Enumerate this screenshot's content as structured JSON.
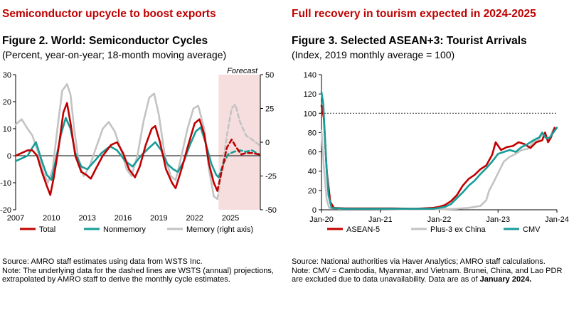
{
  "left": {
    "headline": "Semiconductor upcycle to boost exports",
    "title": "Figure 2. World: Semiconductor Cycles",
    "subtitle": "(Percent, year-on-year; 18-month moving average)",
    "source": "Source: AMRO staff estimates using data from WSTS Inc.",
    "note": "Note: The underlying data for the dashed lines are WSTS (annual) projections, extrapolated by AMRO staff to derive the monthly cycle estimates."
  },
  "right": {
    "headline": "Full recovery in tourism expected in 2024-2025",
    "title": "Figure 3. Selected ASEAN+3: Tourist Arrivals",
    "subtitle": "(Index, 2019 monthly average = 100)",
    "source": "Source: National authorities via Haver Analytics; AMRO staff calculations.",
    "note_main": "Note: CMV = Cambodia, Myanmar, and Vietnam. Brunei, China, and Lao PDR are excluded due to data unavailability. Data are as of",
    "note_bold": "January 2024."
  },
  "colors": {
    "headline": "#c00000",
    "total": "#c00000",
    "nonmemory": "#179c98",
    "memory": "#c3c3c3",
    "asean5": "#c00000",
    "plus3": "#c3c3c3",
    "cmv": "#179c98",
    "forecast_shade": "#f6dede"
  },
  "chart_data": [
    {
      "type": "line",
      "x_unit": "year",
      "xlim": [
        2007,
        2027.5
      ],
      "x_tick_labels": [
        "2007",
        "2010",
        "2013",
        "2016",
        "2019",
        "2022",
        "2025"
      ],
      "y_left": {
        "ylim": [
          -20,
          30
        ],
        "tick_labels": [
          "-20",
          "-10",
          "0",
          "10",
          "20",
          "30"
        ]
      },
      "y_right": {
        "label": "Memory (right axis)",
        "ylim": [
          -50,
          50
        ],
        "tick_labels": [
          "-50",
          "-25",
          "0",
          "25",
          "50"
        ]
      },
      "forecast": {
        "label": "Forecast",
        "start": 2024.0,
        "end": 2027.5
      },
      "series": [
        {
          "name": "Total",
          "axis": "left",
          "points": [
            [
              2007.0,
              0
            ],
            [
              2007.5,
              1
            ],
            [
              2008.0,
              2
            ],
            [
              2008.4,
              2
            ],
            [
              2008.8,
              0
            ],
            [
              2009.2,
              -6
            ],
            [
              2009.6,
              -11
            ],
            [
              2009.9,
              -14.5
            ],
            [
              2010.2,
              -8
            ],
            [
              2010.6,
              3
            ],
            [
              2011.0,
              16
            ],
            [
              2011.3,
              19.5
            ],
            [
              2011.6,
              12
            ],
            [
              2012.0,
              0
            ],
            [
              2012.5,
              -6
            ],
            [
              2012.9,
              -7
            ],
            [
              2013.3,
              -8.5
            ],
            [
              2013.7,
              -5
            ],
            [
              2014.3,
              0
            ],
            [
              2015.0,
              4
            ],
            [
              2015.5,
              5
            ],
            [
              2016.0,
              1
            ],
            [
              2016.5,
              -5
            ],
            [
              2017.0,
              -8
            ],
            [
              2017.4,
              -4
            ],
            [
              2017.9,
              4
            ],
            [
              2018.4,
              10
            ],
            [
              2018.7,
              11
            ],
            [
              2019.1,
              5
            ],
            [
              2019.6,
              -5
            ],
            [
              2020.1,
              -10
            ],
            [
              2020.4,
              -12
            ],
            [
              2020.9,
              -5
            ],
            [
              2021.4,
              3
            ],
            [
              2022.0,
              12
            ],
            [
              2022.4,
              13.5
            ],
            [
              2022.8,
              8
            ],
            [
              2023.2,
              -3
            ],
            [
              2023.6,
              -10
            ],
            [
              2023.9,
              -13
            ]
          ]
        },
        {
          "name": "Total",
          "axis": "left",
          "dashed": true,
          "points": [
            [
              2023.9,
              -13
            ],
            [
              2024.3,
              -5
            ],
            [
              2024.7,
              3
            ],
            [
              2025.1,
              6
            ],
            [
              2025.5,
              3
            ],
            [
              2025.9,
              0.5
            ],
            [
              2026.3,
              1
            ],
            [
              2026.8,
              1
            ],
            [
              2027.4,
              0.5
            ]
          ]
        },
        {
          "name": "Nonmemory",
          "axis": "left",
          "points": [
            [
              2007.0,
              -2
            ],
            [
              2007.5,
              -1
            ],
            [
              2008.0,
              0
            ],
            [
              2008.4,
              3
            ],
            [
              2008.7,
              5
            ],
            [
              2009.2,
              -2
            ],
            [
              2009.6,
              -7
            ],
            [
              2010.0,
              -9
            ],
            [
              2010.3,
              -3
            ],
            [
              2010.8,
              8
            ],
            [
              2011.2,
              14
            ],
            [
              2011.6,
              10
            ],
            [
              2012.0,
              1
            ],
            [
              2012.5,
              -4
            ],
            [
              2013.0,
              -5
            ],
            [
              2013.6,
              -2
            ],
            [
              2014.2,
              1
            ],
            [
              2014.9,
              3.5
            ],
            [
              2015.5,
              2
            ],
            [
              2016.2,
              -2
            ],
            [
              2016.8,
              -4
            ],
            [
              2017.5,
              0
            ],
            [
              2018.2,
              3
            ],
            [
              2018.7,
              5
            ],
            [
              2019.2,
              2
            ],
            [
              2019.7,
              -3
            ],
            [
              2020.2,
              -5
            ],
            [
              2020.6,
              -6
            ],
            [
              2021.1,
              -2
            ],
            [
              2021.6,
              4
            ],
            [
              2022.1,
              9
            ],
            [
              2022.5,
              10.5
            ],
            [
              2022.9,
              5
            ],
            [
              2023.4,
              -3
            ],
            [
              2023.8,
              -7
            ],
            [
              2024.0,
              -8
            ]
          ]
        },
        {
          "name": "Nonmemory",
          "axis": "left",
          "dashed": true,
          "points": [
            [
              2024.0,
              -8
            ],
            [
              2024.4,
              -3
            ],
            [
              2024.8,
              0.5
            ],
            [
              2025.3,
              1.5
            ],
            [
              2025.8,
              2
            ],
            [
              2026.3,
              1.5
            ],
            [
              2026.8,
              2
            ],
            [
              2027.4,
              0.5
            ]
          ]
        },
        {
          "name": "Memory (right axis)",
          "axis": "right",
          "points": [
            [
              2007.0,
              13
            ],
            [
              2007.5,
              17
            ],
            [
              2008.0,
              10
            ],
            [
              2008.4,
              5
            ],
            [
              2008.9,
              -8
            ],
            [
              2009.3,
              -22
            ],
            [
              2009.7,
              -30
            ],
            [
              2010.1,
              -20
            ],
            [
              2010.5,
              10
            ],
            [
              2010.9,
              38
            ],
            [
              2011.3,
              43
            ],
            [
              2011.6,
              35
            ],
            [
              2011.9,
              10
            ],
            [
              2012.3,
              -15
            ],
            [
              2012.7,
              -25
            ],
            [
              2013.2,
              -18
            ],
            [
              2013.7,
              -5
            ],
            [
              2014.3,
              10
            ],
            [
              2014.8,
              15
            ],
            [
              2015.3,
              8
            ],
            [
              2015.8,
              -5
            ],
            [
              2016.3,
              -20
            ],
            [
              2016.7,
              -25
            ],
            [
              2017.2,
              -10
            ],
            [
              2017.7,
              15
            ],
            [
              2018.2,
              33
            ],
            [
              2018.6,
              36
            ],
            [
              2019.0,
              20
            ],
            [
              2019.5,
              -10
            ],
            [
              2020.0,
              -25
            ],
            [
              2020.4,
              -28
            ],
            [
              2020.9,
              -10
            ],
            [
              2021.4,
              10
            ],
            [
              2021.9,
              25
            ],
            [
              2022.3,
              27
            ],
            [
              2022.8,
              10
            ],
            [
              2023.2,
              -20
            ],
            [
              2023.6,
              -40
            ],
            [
              2023.9,
              -42
            ]
          ]
        },
        {
          "name": "Memory (right axis)",
          "axis": "right",
          "dashed": true,
          "points": [
            [
              2023.9,
              -42
            ],
            [
              2024.3,
              -20
            ],
            [
              2024.7,
              5
            ],
            [
              2025.1,
              25
            ],
            [
              2025.4,
              28
            ],
            [
              2025.8,
              15
            ],
            [
              2026.3,
              5
            ],
            [
              2026.8,
              2
            ],
            [
              2027.4,
              -2
            ]
          ]
        }
      ],
      "legend": [
        "Total",
        "Nonmemory",
        "Memory (right axis)"
      ],
      "reference_line": 0
    },
    {
      "type": "line",
      "x_unit": "year",
      "xlim": [
        2020.0,
        2024.0
      ],
      "x_tick_labels": [
        "Jan-20",
        "Jan-21",
        "Jan-22",
        "Jan-23",
        "Jan-24"
      ],
      "ylim": [
        0,
        140
      ],
      "y_tick_labels": [
        "0",
        "20",
        "40",
        "60",
        "80",
        "100",
        "120",
        "140"
      ],
      "reference_line": 100,
      "series": [
        {
          "name": "ASEAN-5",
          "points": [
            [
              2020.0,
              108
            ],
            [
              2020.04,
              95
            ],
            [
              2020.09,
              40
            ],
            [
              2020.15,
              8
            ],
            [
              2020.21,
              2
            ],
            [
              2020.4,
              1.5
            ],
            [
              2020.8,
              1.5
            ],
            [
              2021.2,
              1.5
            ],
            [
              2021.6,
              1
            ],
            [
              2021.9,
              2
            ],
            [
              2022.0,
              3
            ],
            [
              2022.1,
              5
            ],
            [
              2022.2,
              9
            ],
            [
              2022.3,
              15
            ],
            [
              2022.4,
              25
            ],
            [
              2022.5,
              32
            ],
            [
              2022.6,
              36
            ],
            [
              2022.7,
              42
            ],
            [
              2022.8,
              46
            ],
            [
              2022.9,
              57
            ],
            [
              2022.96,
              70
            ],
            [
              2023.05,
              62
            ],
            [
              2023.15,
              65
            ],
            [
              2023.25,
              66
            ],
            [
              2023.35,
              70
            ],
            [
              2023.45,
              68
            ],
            [
              2023.55,
              64
            ],
            [
              2023.65,
              70
            ],
            [
              2023.75,
              72
            ],
            [
              2023.8,
              80
            ],
            [
              2023.85,
              70
            ],
            [
              2023.9,
              75
            ],
            [
              2023.96,
              85
            ]
          ]
        },
        {
          "name": "Plus-3 ex China",
          "points": [
            [
              2020.0,
              82
            ],
            [
              2020.04,
              45
            ],
            [
              2020.09,
              10
            ],
            [
              2020.13,
              2
            ],
            [
              2020.3,
              1
            ],
            [
              2020.8,
              1
            ],
            [
              2021.5,
              0.5
            ],
            [
              2022.0,
              0.5
            ],
            [
              2022.3,
              1
            ],
            [
              2022.5,
              2
            ],
            [
              2022.7,
              4
            ],
            [
              2022.8,
              10
            ],
            [
              2022.85,
              20
            ],
            [
              2022.92,
              28
            ],
            [
              2023.0,
              38
            ],
            [
              2023.1,
              50
            ],
            [
              2023.2,
              55
            ],
            [
              2023.3,
              58
            ],
            [
              2023.4,
              62
            ],
            [
              2023.5,
              63
            ],
            [
              2023.6,
              70
            ],
            [
              2023.68,
              72
            ],
            [
              2023.75,
              78
            ],
            [
              2023.8,
              75
            ],
            [
              2023.87,
              73
            ],
            [
              2023.93,
              82
            ],
            [
              2024.0,
              85
            ]
          ]
        },
        {
          "name": "CMV",
          "points": [
            [
              2020.0,
              122
            ],
            [
              2020.03,
              110
            ],
            [
              2020.08,
              50
            ],
            [
              2020.12,
              15
            ],
            [
              2020.17,
              2
            ],
            [
              2020.4,
              1
            ],
            [
              2020.8,
              1
            ],
            [
              2021.2,
              1
            ],
            [
              2021.6,
              1
            ],
            [
              2021.9,
              1
            ],
            [
              2022.0,
              2
            ],
            [
              2022.1,
              3
            ],
            [
              2022.2,
              6
            ],
            [
              2022.3,
              12
            ],
            [
              2022.4,
              18
            ],
            [
              2022.5,
              25
            ],
            [
              2022.6,
              30
            ],
            [
              2022.7,
              37
            ],
            [
              2022.8,
              43
            ],
            [
              2022.9,
              50
            ],
            [
              2023.0,
              58
            ],
            [
              2023.1,
              60
            ],
            [
              2023.2,
              62
            ],
            [
              2023.3,
              60
            ],
            [
              2023.4,
              65
            ],
            [
              2023.5,
              68
            ],
            [
              2023.6,
              72
            ],
            [
              2023.7,
              75
            ],
            [
              2023.75,
              80
            ],
            [
              2023.82,
              74
            ],
            [
              2023.88,
              75
            ],
            [
              2023.94,
              80
            ],
            [
              2024.0,
              85
            ]
          ]
        }
      ],
      "legend": [
        "ASEAN-5",
        "Plus-3 ex China",
        "CMV"
      ]
    }
  ]
}
